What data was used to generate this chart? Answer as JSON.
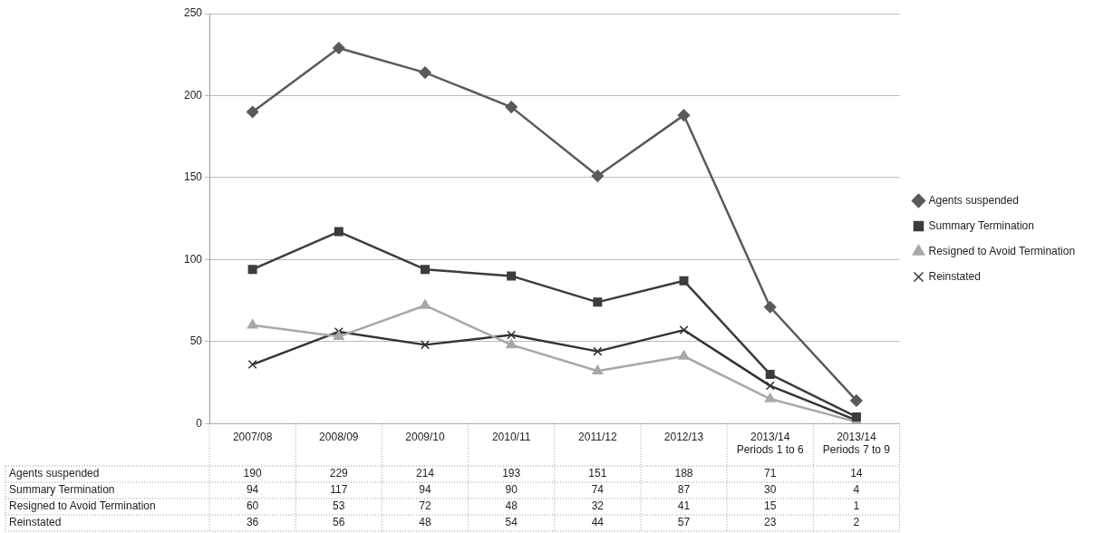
{
  "chart_data": {
    "type": "line",
    "categories": [
      "2007/08",
      "2008/09",
      "2009/10",
      "2010/11",
      "2011/12",
      "2012/13",
      "2013/14 Periods 1 to 6",
      "2013/14 Periods 7 to 9"
    ],
    "series": [
      {
        "name": "Agents suspended",
        "color": "#5a5a5a",
        "marker": "diamond",
        "values": [
          190,
          229,
          214,
          193,
          151,
          188,
          71,
          14
        ]
      },
      {
        "name": "Summary Termination",
        "color": "#3c3c3c",
        "marker": "square",
        "values": [
          94,
          117,
          94,
          90,
          74,
          87,
          30,
          4
        ]
      },
      {
        "name": "Resigned to Avoid Termination",
        "color": "#a8a8a8",
        "marker": "triangle",
        "values": [
          60,
          53,
          72,
          48,
          32,
          41,
          15,
          1
        ]
      },
      {
        "name": "Reinstated",
        "color": "#333333",
        "marker": "cross",
        "values": [
          36,
          56,
          48,
          54,
          44,
          57,
          23,
          2
        ]
      }
    ],
    "ylim": [
      0,
      250
    ],
    "yticks": [
      0,
      50,
      100,
      150,
      200,
      250
    ],
    "grid": "y",
    "legend": "right",
    "line_style": "solid",
    "data_labels": true
  }
}
